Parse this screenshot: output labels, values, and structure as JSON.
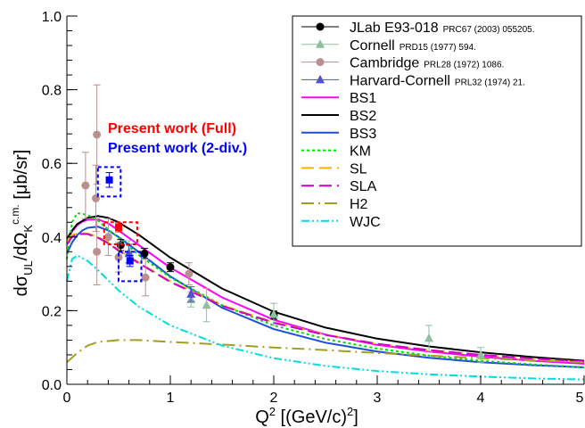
{
  "chart_data": {
    "type": "line",
    "xlabel": "Q^2 [(GeV/c)^2]",
    "ylabel": "dσUL/dΩK c.m. [μb/sr]",
    "xlim": [
      0,
      5
    ],
    "ylim": [
      0,
      1.0
    ],
    "x_ticks": [
      "0",
      "1",
      "2",
      "3",
      "4",
      "5"
    ],
    "y_ticks": [
      "0.0",
      "0.2",
      "0.4",
      "0.6",
      "0.8",
      "1.0"
    ],
    "grid": false,
    "legend_position": "top-right",
    "annotations": [
      {
        "text": "Present work (Full)",
        "color": "#ff0000"
      },
      {
        "text": "Present work (2-div.)",
        "color": "#0000ff"
      }
    ],
    "datasets": [
      {
        "name": "JLab E93-018",
        "ref": "PRC67 (2003) 055205.",
        "color": "#000000",
        "marker": "circle",
        "points": [
          [
            0.52,
            0.378,
            0.015
          ],
          [
            0.75,
            0.355,
            0.014
          ],
          [
            1.0,
            0.318,
            0.012
          ],
          [
            2.0,
            0.188,
            0.011
          ]
        ]
      },
      {
        "name": "Cornell",
        "ref": "PRD15 (1977) 594.",
        "color": "#8fbf9f",
        "marker": "triangle",
        "points": [
          [
            0.6,
            0.36,
            0.03
          ],
          [
            1.2,
            0.23,
            0.02
          ],
          [
            1.35,
            0.215,
            0.045
          ],
          [
            2.0,
            0.19,
            0.03
          ],
          [
            3.5,
            0.125,
            0.035
          ],
          [
            4.0,
            0.08,
            0.02
          ]
        ]
      },
      {
        "name": "Cambridge",
        "ref": "PRL28 (1972) 1086.",
        "color": "#bc8f8f",
        "marker": "circle",
        "points": [
          [
            0.18,
            0.54,
            0.09
          ],
          [
            0.29,
            0.678,
            0.135
          ],
          [
            0.28,
            0.505,
            0.09
          ],
          [
            0.29,
            0.36,
            0.09
          ],
          [
            0.4,
            0.4,
            0.05
          ],
          [
            0.5,
            0.345,
            0.04
          ],
          [
            0.76,
            0.29,
            0.05
          ],
          [
            1.18,
            0.3,
            0.03
          ]
        ]
      },
      {
        "name": "Harvard-Cornell",
        "ref": "PRL32 (1974) 21.",
        "color": "#5050d0",
        "marker": "triangle",
        "points": [
          [
            0.6,
            0.355,
            0.025
          ],
          [
            1.2,
            0.245,
            0.02
          ]
        ]
      },
      {
        "name": "Present work (Full)",
        "color": "#ff0000",
        "marker": "square",
        "points": [
          [
            0.5,
            0.426,
            0.012
          ]
        ],
        "box": {
          "x": [
            0.36,
            0.68
          ],
          "y": [
            0.38,
            0.44
          ]
        }
      },
      {
        "name": "Present work (2-div.)",
        "color": "#0000ff",
        "marker": "square",
        "points": [
          [
            0.41,
            0.555,
            0.02
          ],
          [
            0.61,
            0.335,
            0.015
          ]
        ],
        "boxes": [
          {
            "x": [
              0.3,
              0.52
            ],
            "y": [
              0.51,
              0.59
            ]
          },
          {
            "x": [
              0.5,
              0.72
            ],
            "y": [
              0.28,
              0.36
            ]
          }
        ]
      }
    ],
    "series": [
      {
        "name": "BS1",
        "color": "#ff00ff",
        "dash": "solid",
        "x": [
          0,
          0.05,
          0.1,
          0.15,
          0.2,
          0.3,
          0.4,
          0.5,
          0.7,
          1.0,
          1.5,
          2.0,
          2.5,
          3.0,
          3.5,
          4.0,
          4.5,
          5.0
        ],
        "y": [
          0.39,
          0.415,
          0.432,
          0.442,
          0.447,
          0.448,
          0.437,
          0.418,
          0.377,
          0.317,
          0.236,
          0.175,
          0.135,
          0.107,
          0.089,
          0.075,
          0.064,
          0.056
        ]
      },
      {
        "name": "BS2",
        "color": "#000000",
        "dash": "solid",
        "x": [
          0,
          0.05,
          0.1,
          0.2,
          0.3,
          0.4,
          0.5,
          0.7,
          1.0,
          1.5,
          2.0,
          2.5,
          3.0,
          3.5,
          4.0,
          4.5,
          5.0
        ],
        "y": [
          0.395,
          0.418,
          0.435,
          0.452,
          0.457,
          0.452,
          0.44,
          0.405,
          0.344,
          0.26,
          0.197,
          0.154,
          0.124,
          0.103,
          0.087,
          0.074,
          0.064
        ]
      },
      {
        "name": "BS3",
        "color": "#1e4fd8",
        "dash": "solid",
        "x": [
          0,
          0.05,
          0.1,
          0.15,
          0.2,
          0.3,
          0.4,
          0.5,
          0.7,
          1.0,
          1.5,
          2.0,
          2.5,
          3.0,
          3.5,
          4.0,
          4.5,
          5.0
        ],
        "y": [
          0.355,
          0.385,
          0.405,
          0.418,
          0.425,
          0.428,
          0.418,
          0.4,
          0.358,
          0.293,
          0.208,
          0.15,
          0.113,
          0.089,
          0.072,
          0.06,
          0.052,
          0.046
        ]
      },
      {
        "name": "KM",
        "color": "#00dd00",
        "dash": "dotted",
        "x": [
          0,
          0.05,
          0.1,
          0.2,
          0.3,
          0.4,
          0.5,
          0.7,
          1.0,
          1.5,
          2.0,
          2.5,
          3.0,
          3.5,
          4.0,
          4.5,
          5.0
        ],
        "y": [
          0.34,
          0.44,
          0.465,
          0.46,
          0.445,
          0.42,
          0.398,
          0.35,
          0.29,
          0.215,
          0.16,
          0.123,
          0.097,
          0.078,
          0.064,
          0.054,
          0.046
        ]
      },
      {
        "name": "SL",
        "color": "#ffb000",
        "dash": "longdash",
        "x": [
          0,
          0.05,
          0.1,
          0.2,
          0.3,
          0.4,
          0.5,
          0.7,
          1.0,
          1.5,
          2.0,
          2.5,
          3.0,
          3.5,
          4.0,
          4.5,
          5.0
        ],
        "y": [
          0.39,
          0.405,
          0.41,
          0.41,
          0.4,
          0.385,
          0.365,
          0.33,
          0.28,
          0.215,
          0.168,
          0.135,
          0.11,
          0.093,
          0.08,
          0.069,
          0.061
        ]
      },
      {
        "name": "SLA",
        "color": "#cc00cc",
        "dash": "longdash",
        "x": [
          0,
          0.05,
          0.1,
          0.2,
          0.3,
          0.4,
          0.5,
          0.7,
          1.0,
          1.5,
          2.0,
          2.5,
          3.0,
          3.5,
          4.0,
          4.5,
          5.0
        ],
        "y": [
          0.38,
          0.4,
          0.408,
          0.408,
          0.398,
          0.383,
          0.363,
          0.328,
          0.278,
          0.213,
          0.167,
          0.134,
          0.11,
          0.093,
          0.08,
          0.07,
          0.062
        ]
      },
      {
        "name": "H2",
        "color": "#a0a020",
        "dash": "dashdot",
        "x": [
          0,
          0.1,
          0.2,
          0.3,
          0.5,
          0.7,
          1.0,
          1.5,
          2.0,
          2.5,
          3.0,
          3.5,
          4.0,
          4.5,
          5.0
        ],
        "y": [
          0.06,
          0.085,
          0.105,
          0.115,
          0.12,
          0.12,
          0.115,
          0.108,
          0.1,
          0.093,
          0.085,
          0.078,
          0.071,
          0.065,
          0.06
        ]
      },
      {
        "name": "WJC",
        "color": "#00dddd",
        "dash": "dashdotdot",
        "x": [
          0,
          0.05,
          0.1,
          0.2,
          0.3,
          0.5,
          0.7,
          1.0,
          1.5,
          2.0,
          2.5,
          3.0,
          3.5,
          4.0,
          4.5,
          5.0
        ],
        "y": [
          0.28,
          0.34,
          0.35,
          0.335,
          0.31,
          0.255,
          0.21,
          0.16,
          0.105,
          0.071,
          0.05,
          0.036,
          0.027,
          0.021,
          0.016,
          0.013
        ]
      }
    ]
  }
}
